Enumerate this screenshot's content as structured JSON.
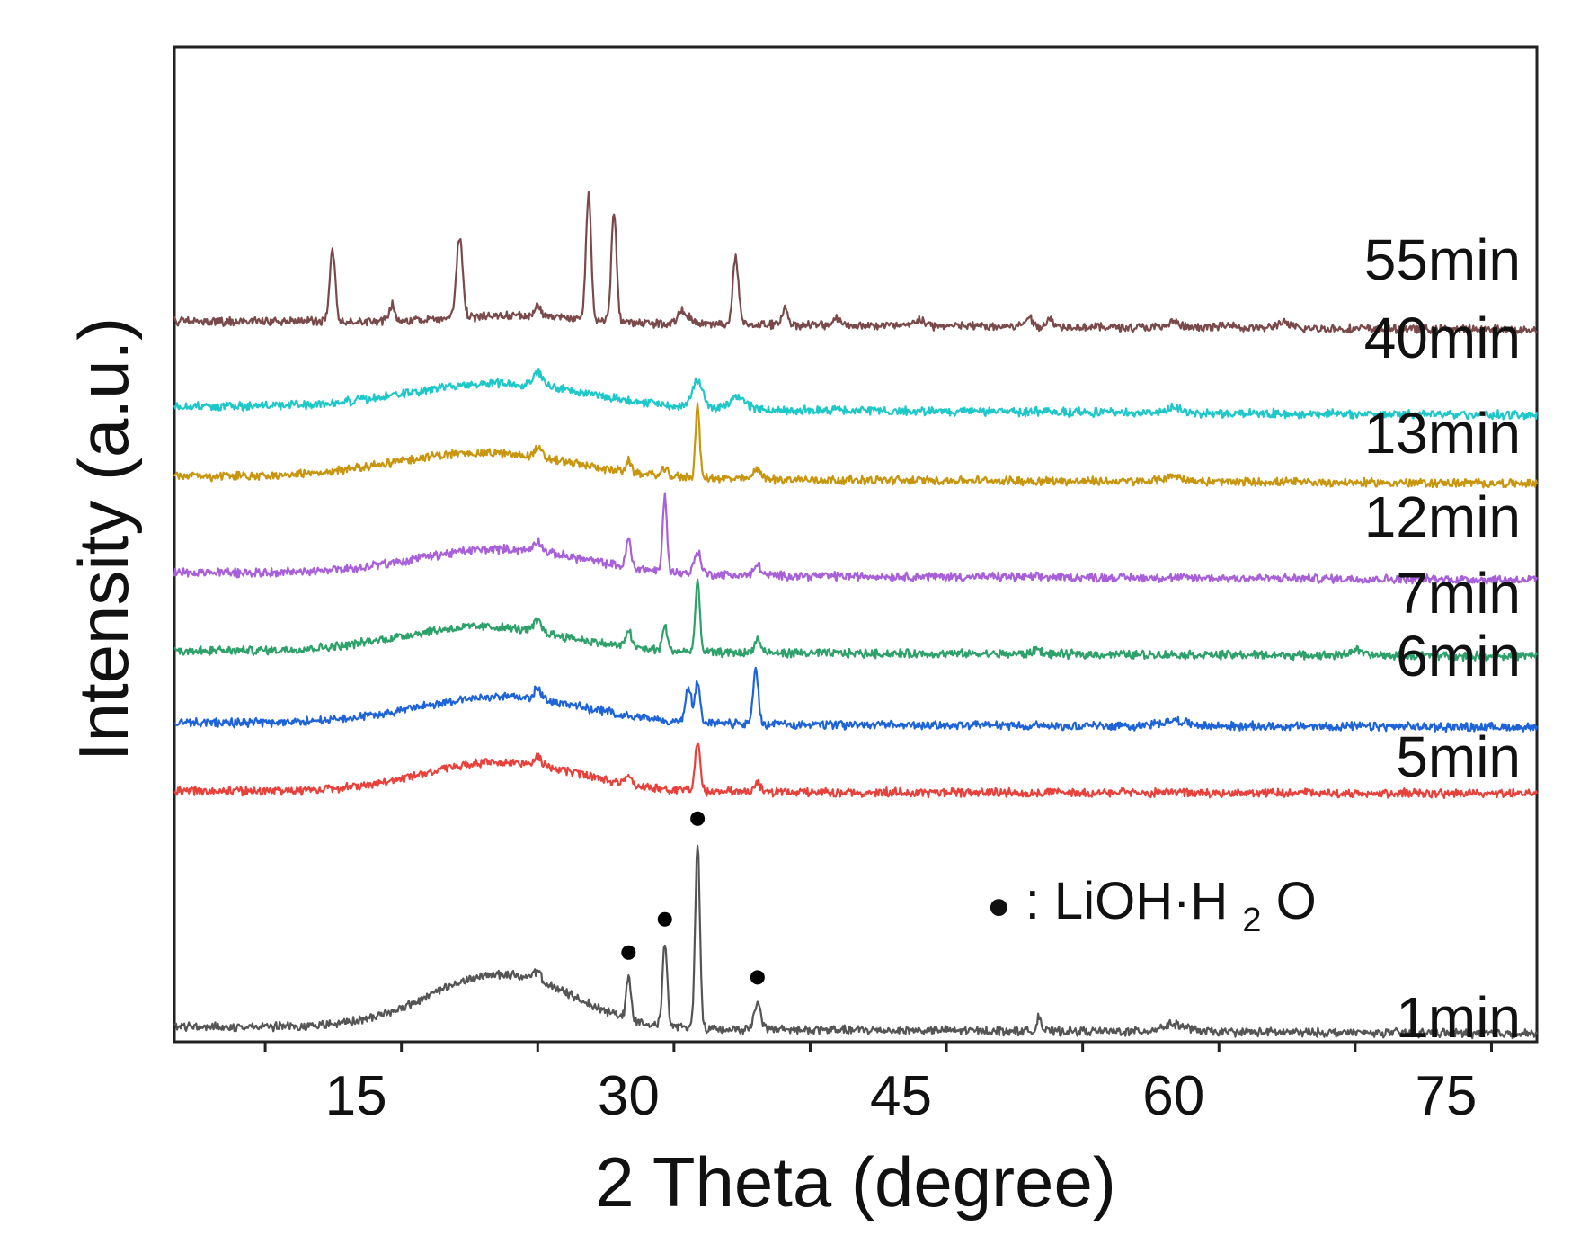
{
  "chart_data": {
    "type": "line",
    "title": "",
    "xlabel": "2 Theta (degree)",
    "ylabel": "Intensity (a.u.)",
    "xlim": [
      5,
      80
    ],
    "x_ticks": [
      15,
      30,
      45,
      60,
      75
    ],
    "x_tick_labels": [
      "15",
      "30",
      "45",
      "60",
      "75"
    ],
    "y_ticks_shown": false,
    "legend": {
      "marker": "●",
      "text_pre": ": LiOH·H",
      "text_sub": "2",
      "text_post": "O"
    },
    "marker_positions_deg": [
      30.0,
      32.0,
      33.8,
      37.1
    ],
    "series": [
      {
        "name": "1min",
        "color": "#555555",
        "offset": 0,
        "hump": {
          "center": 23,
          "width": 5.5,
          "height": 60
        },
        "baseline_end": -8,
        "peaks": [
          [
            25.0,
            10,
            0.3
          ],
          [
            30.0,
            45,
            0.18
          ],
          [
            32.0,
            90,
            0.18
          ],
          [
            33.8,
            205,
            0.18
          ],
          [
            37.1,
            30,
            0.25
          ],
          [
            52.6,
            18,
            0.15
          ],
          [
            60.0,
            8,
            1.0
          ]
        ]
      },
      {
        "name": "5min",
        "color": "#e8413c",
        "offset": 262,
        "hump": {
          "center": 23,
          "width": 6,
          "height": 33
        },
        "baseline_end": -3,
        "peaks": [
          [
            25.0,
            10,
            0.3
          ],
          [
            30.0,
            12,
            0.2
          ],
          [
            33.8,
            55,
            0.2
          ],
          [
            37.1,
            10,
            0.25
          ]
        ]
      },
      {
        "name": "6min",
        "color": "#1e64d8",
        "offset": 338,
        "hump": {
          "center": 23,
          "width": 6.5,
          "height": 30
        },
        "baseline_end": -5,
        "peaks": [
          [
            25.0,
            12,
            0.3
          ],
          [
            33.3,
            40,
            0.22
          ],
          [
            33.8,
            45,
            0.2
          ],
          [
            37.0,
            62,
            0.2
          ],
          [
            60.0,
            6,
            1.0
          ]
        ]
      },
      {
        "name": "7min",
        "color": "#2ea06a",
        "offset": 418,
        "hump": {
          "center": 22,
          "width": 6.5,
          "height": 28
        },
        "baseline_end": -6,
        "peaks": [
          [
            25.0,
            12,
            0.3
          ],
          [
            30.0,
            20,
            0.2
          ],
          [
            32.0,
            28,
            0.18
          ],
          [
            33.8,
            75,
            0.18
          ],
          [
            37.1,
            15,
            0.25
          ],
          [
            52.5,
            6,
            0.3
          ],
          [
            70.0,
            6,
            0.5
          ]
        ]
      },
      {
        "name": "12min",
        "color": "#a860d8",
        "offset": 505,
        "hump": {
          "center": 23,
          "width": 6.5,
          "height": 28
        },
        "baseline_end": -8,
        "peaks": [
          [
            25.0,
            12,
            0.3
          ],
          [
            30.0,
            32,
            0.18
          ],
          [
            32.0,
            85,
            0.16
          ],
          [
            33.8,
            25,
            0.25
          ],
          [
            37.1,
            12,
            0.25
          ]
        ]
      },
      {
        "name": "13min",
        "color": "#c8960e",
        "offset": 612,
        "hump": {
          "center": 22,
          "width": 7,
          "height": 28
        },
        "baseline_end": -8,
        "peaks": [
          [
            25.0,
            10,
            0.3
          ],
          [
            30.0,
            12,
            0.2
          ],
          [
            32.0,
            8,
            0.2
          ],
          [
            33.8,
            80,
            0.16
          ],
          [
            37.1,
            12,
            0.3
          ],
          [
            60.0,
            6,
            0.8
          ]
        ]
      },
      {
        "name": "40min",
        "color": "#1ec8c8",
        "offset": 690,
        "hump": {
          "center": 23,
          "width": 7,
          "height": 28
        },
        "baseline_end": -10,
        "peaks": [
          [
            25.0,
            15,
            0.4
          ],
          [
            33.8,
            30,
            0.4
          ],
          [
            36.0,
            12,
            0.7
          ],
          [
            60.0,
            8,
            0.4
          ]
        ]
      },
      {
        "name": "55min",
        "color": "#7a4a4a",
        "offset": 785,
        "hump": {
          "center": 24,
          "width": 5,
          "height": 8
        },
        "baseline_end": -10,
        "peaks": [
          [
            13.7,
            80,
            0.22
          ],
          [
            17.0,
            20,
            0.2
          ],
          [
            20.7,
            90,
            0.25
          ],
          [
            25.0,
            10,
            0.3
          ],
          [
            27.8,
            140,
            0.2
          ],
          [
            29.2,
            122,
            0.2
          ],
          [
            33.0,
            15,
            0.4
          ],
          [
            35.9,
            75,
            0.22
          ],
          [
            38.6,
            18,
            0.25
          ],
          [
            41.5,
            8,
            0.3
          ],
          [
            46.0,
            8,
            0.3
          ],
          [
            52.0,
            10,
            0.3
          ],
          [
            53.2,
            8,
            0.3
          ],
          [
            60.0,
            6,
            0.4
          ],
          [
            63.0,
            5,
            0.4
          ],
          [
            66.0,
            6,
            0.5
          ]
        ]
      }
    ]
  }
}
